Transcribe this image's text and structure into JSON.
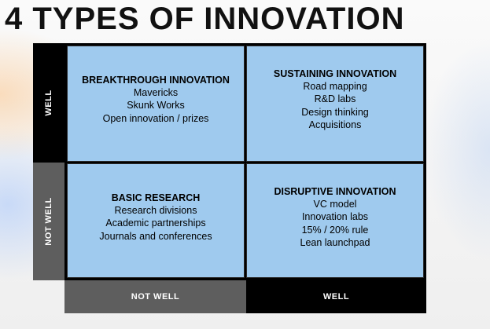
{
  "title": "4 TYPES OF INNOVATION",
  "y_axis": {
    "well": "WELL",
    "not_well": "NOT WELL"
  },
  "x_axis": {
    "not_well": "NOT WELL",
    "well": "WELL"
  },
  "quadrants": {
    "top_left": {
      "title": "BREAKTHROUGH INNOVATION",
      "items": [
        "Mavericks",
        "Skunk Works",
        "Open innovation / prizes"
      ]
    },
    "top_right": {
      "title": "SUSTAINING INNOVATION",
      "items": [
        "Road mapping",
        "R&D labs",
        "Design thinking",
        "Acquisitions"
      ]
    },
    "bottom_left": {
      "title": "BASIC RESEARCH",
      "items": [
        "Research divisions",
        "Academic partnerships",
        "Journals and conferences"
      ]
    },
    "bottom_right": {
      "title": "DISRUPTIVE INNOVATION",
      "items": [
        "VC model",
        "Innovation labs",
        "15% / 20% rule",
        "Lean launchpad"
      ]
    }
  },
  "colors": {
    "quadrant_fill": "#9fcaee",
    "band_dark": "#000000",
    "band_gray": "#5e5e5e"
  }
}
